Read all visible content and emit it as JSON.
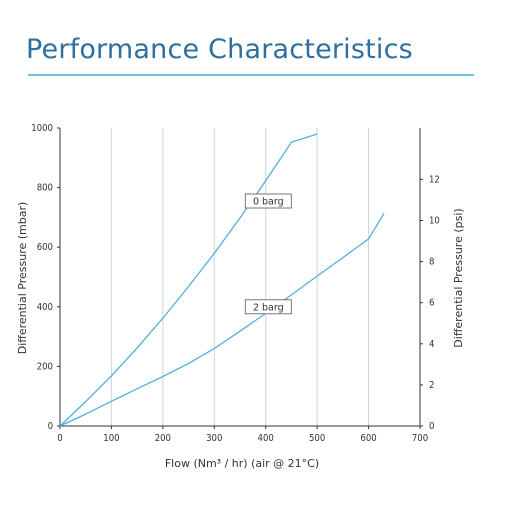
{
  "header": {
    "title": "Performance Characteristics"
  },
  "chart_data": {
    "type": "line",
    "title": "Performance Characteristics",
    "xlabel": "Flow (Nm³ / hr) (air @ 21°C)",
    "ylabel": "Differential Pressure (mbar)",
    "y2label": "Differential Pressure (psi)",
    "xlim": [
      0,
      700
    ],
    "ylim": [
      0,
      1000
    ],
    "y2lim": [
      0,
      14.5
    ],
    "xticks": [
      0,
      100,
      200,
      300,
      400,
      500,
      600,
      700
    ],
    "yticks": [
      0,
      200,
      400,
      600,
      800,
      1000
    ],
    "y2ticks": [
      0,
      2,
      4,
      6,
      8,
      10,
      12
    ],
    "grid": "vertical",
    "colors": {
      "line": "#4fb1d6",
      "grid": "#c9d6df",
      "axis": "#333333"
    },
    "series": [
      {
        "name": "0 barg",
        "x": [
          0,
          50,
          100,
          150,
          200,
          250,
          300,
          350,
          400,
          450,
          500
        ],
        "y": [
          0,
          82,
          168,
          262,
          362,
          468,
          580,
          698,
          823,
          952,
          980
        ],
        "label_at": [
          405,
          755
        ]
      },
      {
        "name": "2 barg",
        "x": [
          0,
          50,
          100,
          150,
          200,
          250,
          300,
          350,
          400,
          450,
          500,
          550,
          600,
          630
        ],
        "y": [
          0,
          40,
          83,
          125,
          166,
          210,
          260,
          318,
          378,
          440,
          503,
          565,
          628,
          713
        ],
        "label_at": [
          405,
          400
        ]
      }
    ]
  }
}
